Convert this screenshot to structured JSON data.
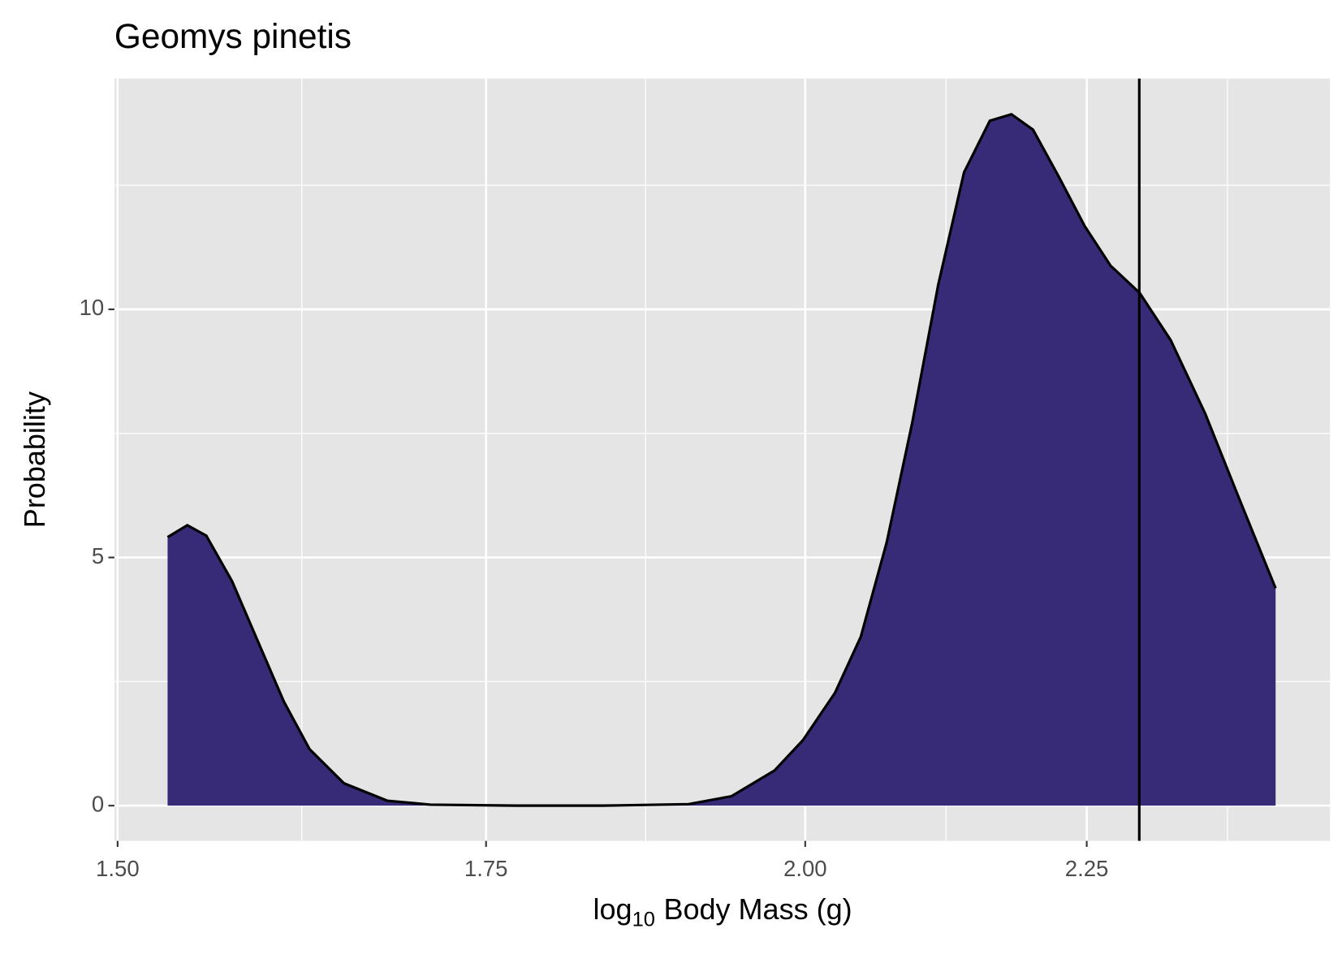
{
  "chart_data": {
    "type": "area",
    "title": "Geomys pinetis",
    "x_label_parts": [
      "log",
      "10",
      "Body Mass (g)"
    ],
    "y_label": "Probability",
    "x_scale": "log10",
    "x": [
      1.5317,
      1.5444,
      1.5567,
      1.5736,
      1.5907,
      1.608,
      1.6254,
      1.649,
      1.6791,
      1.7096,
      1.7723,
      1.8373,
      1.9047,
      1.9393,
      1.9746,
      1.9981,
      2.025,
      2.047,
      2.0693,
      2.0917,
      2.1145,
      2.1374,
      2.1606,
      2.1802,
      2.2,
      2.2239,
      2.248,
      2.2725,
      2.3004,
      2.3304,
      2.3643,
      2.3985,
      2.435
    ],
    "values": [
      5.41,
      5.65,
      5.44,
      4.52,
      3.31,
      2.1,
      1.14,
      0.45,
      0.1,
      0.02,
      0,
      0,
      0.03,
      0.19,
      0.71,
      1.32,
      2.27,
      3.4,
      5.3,
      7.73,
      10.5,
      12.76,
      13.8,
      13.93,
      13.62,
      12.67,
      11.68,
      10.88,
      10.33,
      9.38,
      7.9,
      6.17,
      4.38
    ],
    "fill": "#372b77",
    "line_color": "#000000",
    "vline": 2.3,
    "xlim": [
      1.498,
      2.491
    ],
    "xticks": [
      {
        "value": 1.5,
        "label": "1.50"
      },
      {
        "value": 1.75,
        "label": "1.75"
      },
      {
        "value": 2,
        "label": "2.00"
      },
      {
        "value": 2.25,
        "label": "2.25"
      }
    ],
    "ylim": [
      -0.71,
      14.65
    ],
    "yticks": [
      0,
      5,
      10
    ],
    "grid": true
  }
}
